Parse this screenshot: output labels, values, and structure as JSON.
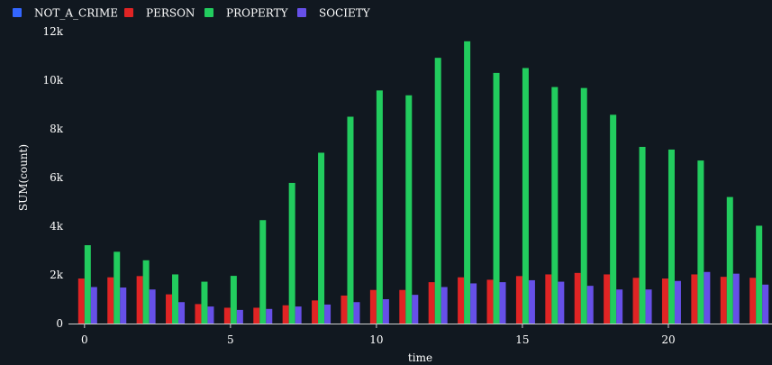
{
  "chart_data": {
    "type": "bar",
    "xlabel": "time",
    "ylabel": "SUM(count)",
    "x": [
      0,
      1,
      2,
      3,
      4,
      5,
      6,
      7,
      8,
      9,
      10,
      11,
      12,
      13,
      14,
      15,
      16,
      17,
      18,
      19,
      20,
      21,
      22,
      23
    ],
    "xticks": [
      0,
      5,
      10,
      15,
      20
    ],
    "xlim": [
      -0.55,
      23.55
    ],
    "ylim": [
      0,
      12000
    ],
    "yticks": [
      0,
      2000,
      4000,
      6000,
      8000,
      10000,
      12000
    ],
    "ytick_labels": [
      "0",
      "2k",
      "4k",
      "6k",
      "8k",
      "10k",
      "12k"
    ],
    "grid": false,
    "legend_position": "top-left",
    "series": [
      {
        "name": "NOT_A_CRIME",
        "color": "#3366ff",
        "values": [
          0,
          0,
          0,
          0,
          0,
          0,
          0,
          0,
          0,
          0,
          0,
          0,
          0,
          0,
          0,
          0,
          0,
          0,
          0,
          0,
          0,
          0,
          0,
          0
        ]
      },
      {
        "name": "PERSON",
        "color": "#e02424",
        "values": [
          1850,
          1900,
          1950,
          1200,
          800,
          650,
          650,
          750,
          950,
          1150,
          1380,
          1380,
          1700,
          1900,
          1800,
          1950,
          2020,
          2080,
          2020,
          1880,
          1850,
          2020,
          1920,
          1880
        ]
      },
      {
        "name": "PROPERTY",
        "color": "#22cc5e",
        "values": [
          3220,
          2950,
          2600,
          2020,
          1720,
          1960,
          4250,
          5780,
          7020,
          8500,
          9580,
          9380,
          10920,
          11600,
          10300,
          10500,
          9720,
          9680,
          8580,
          7260,
          7150,
          6700,
          5200,
          4020
        ]
      },
      {
        "name": "SOCIETY",
        "color": "#6650e8",
        "values": [
          1500,
          1480,
          1400,
          880,
          700,
          560,
          600,
          700,
          780,
          880,
          1000,
          1180,
          1500,
          1650,
          1700,
          1780,
          1720,
          1550,
          1400,
          1400,
          1750,
          2120,
          2050,
          1600
        ]
      }
    ]
  }
}
